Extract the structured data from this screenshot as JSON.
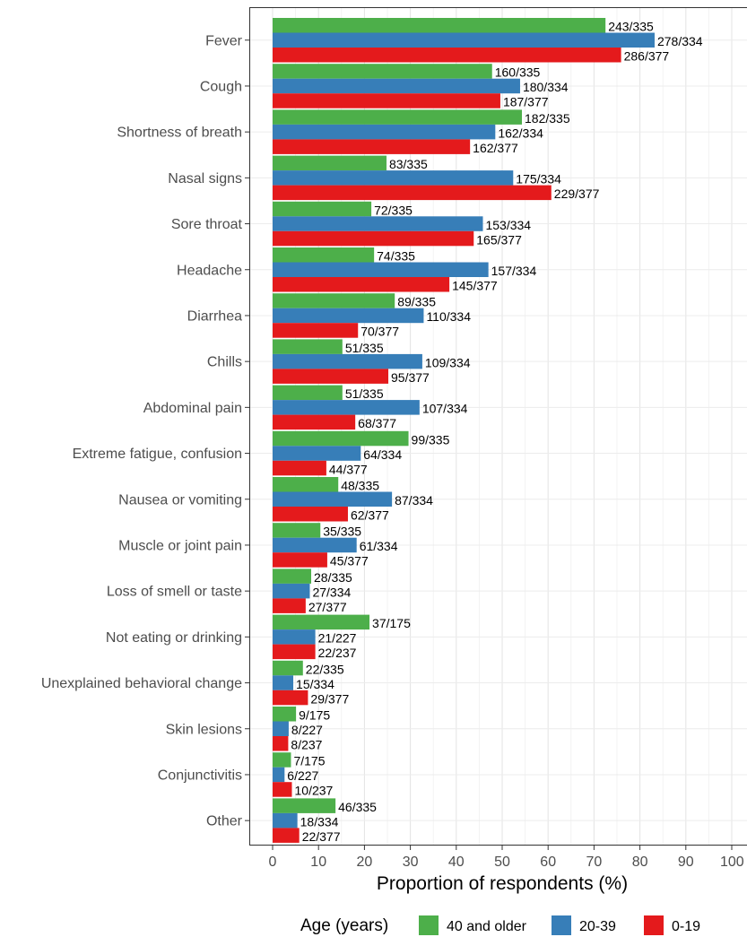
{
  "chart_data": {
    "type": "bar",
    "orientation": "horizontal",
    "xlabel": "Proportion of respondents (%)",
    "ylabel": "",
    "xlim": [
      0,
      100
    ],
    "x_ticks": [
      0,
      10,
      20,
      30,
      40,
      50,
      60,
      70,
      80,
      90,
      100
    ],
    "grid": true,
    "legend_position": "bottom",
    "legend_title": "Age (years)",
    "categories": [
      "Fever",
      "Cough",
      "Shortness of breath",
      "Nasal signs",
      "Sore throat",
      "Headache",
      "Diarrhea",
      "Chills",
      "Abdominal pain",
      "Extreme fatigue, confusion",
      "Nausea or vomiting",
      "Muscle or joint pain",
      "Loss of smell or taste",
      "Not eating or drinking",
      "Unexplained behavioral change",
      "Skin lesions",
      "Conjunctivitis",
      "Other"
    ],
    "series": [
      {
        "name": "40 and older",
        "color": "#4daf4a",
        "values": [
          72.5,
          47.8,
          54.3,
          24.8,
          21.5,
          22.1,
          26.6,
          15.2,
          15.2,
          29.6,
          14.3,
          10.4,
          8.4,
          21.1,
          6.6,
          5.1,
          4.0,
          13.7
        ],
        "labels": [
          "243/335",
          "160/335",
          "182/335",
          "83/335",
          "72/335",
          "74/335",
          "89/335",
          "51/335",
          "51/335",
          "99/335",
          "48/335",
          "35/335",
          "28/335",
          "37/175",
          "22/335",
          "9/175",
          "7/175",
          "46/335"
        ]
      },
      {
        "name": "20-39",
        "color": "#377eb8",
        "values": [
          83.2,
          53.9,
          48.5,
          52.4,
          45.8,
          47.0,
          32.9,
          32.6,
          32.0,
          19.2,
          26.0,
          18.3,
          8.1,
          9.3,
          4.5,
          3.5,
          2.6,
          5.4
        ],
        "labels": [
          "278/334",
          "180/334",
          "162/334",
          "175/334",
          "153/334",
          "157/334",
          "110/334",
          "109/334",
          "107/334",
          "64/334",
          "87/334",
          "61/334",
          "27/334",
          "21/227",
          "15/334",
          "8/227",
          "6/227",
          "18/334"
        ]
      },
      {
        "name": "0-19",
        "color": "#e41a1c",
        "values": [
          75.9,
          49.6,
          43.0,
          60.7,
          43.8,
          38.5,
          18.6,
          25.2,
          18.0,
          11.7,
          16.4,
          11.9,
          7.2,
          9.3,
          7.7,
          3.4,
          4.2,
          5.8
        ],
        "labels": [
          "286/377",
          "187/377",
          "162/377",
          "229/377",
          "165/377",
          "145/377",
          "70/377",
          "95/377",
          "68/377",
          "44/377",
          "62/377",
          "45/377",
          "27/377",
          "22/237",
          "29/377",
          "8/237",
          "10/237",
          "22/377"
        ]
      }
    ],
    "legend_order": [
      "40 and older",
      "20-39",
      "0-19"
    ]
  }
}
